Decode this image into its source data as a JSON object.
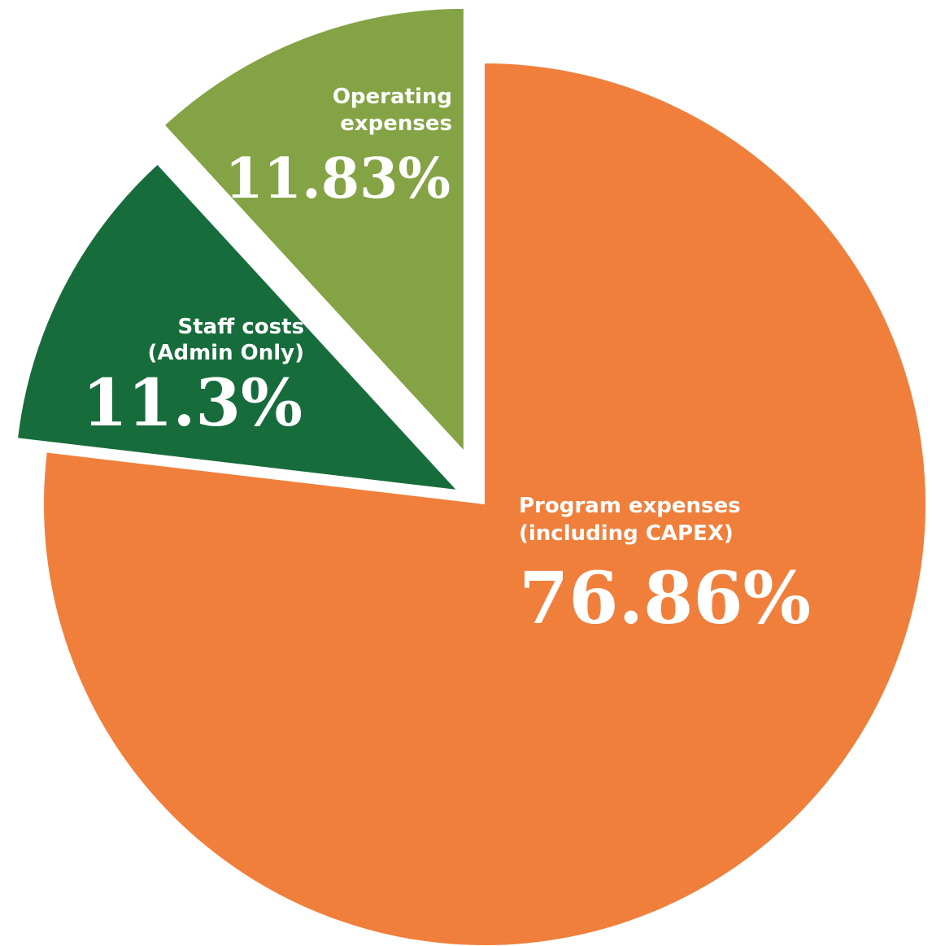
{
  "chart_data": {
    "type": "pie",
    "title": "",
    "slices": [
      {
        "label_lines": [
          "Program expenses",
          "(including CAPEX)"
        ],
        "value": 76.86,
        "value_label": "76.86%",
        "color": "#F07F3C"
      },
      {
        "label_lines": [
          "Staff costs",
          "(Admin Only)"
        ],
        "value": 11.3,
        "value_label": "11.3%",
        "color": "#176C3C"
      },
      {
        "label_lines": [
          "Operating",
          "expenses"
        ],
        "value": 11.83,
        "value_label": "11.83%",
        "color": "#84A345"
      }
    ],
    "legend": "none",
    "exploded": true
  }
}
